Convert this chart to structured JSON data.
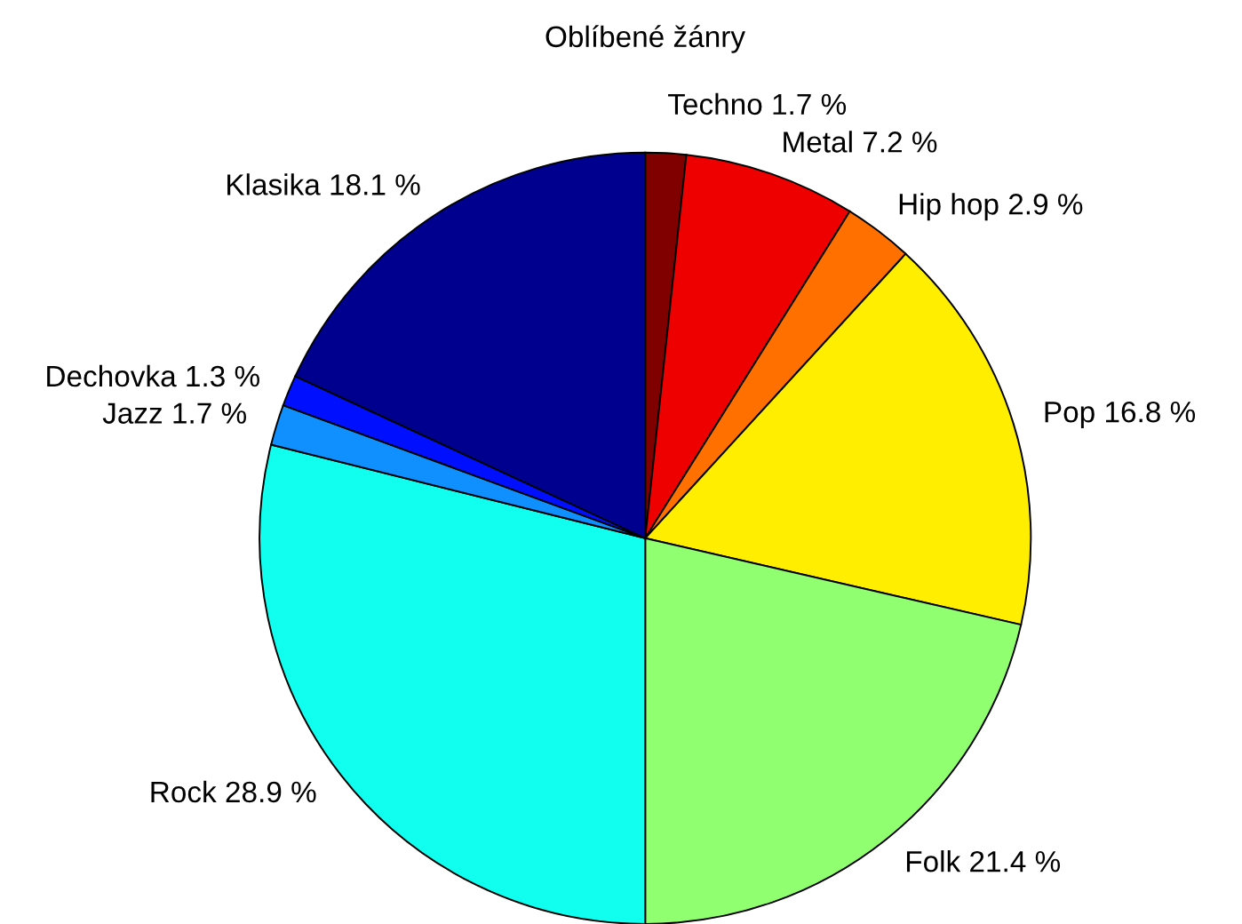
{
  "chart_data": {
    "type": "pie",
    "title": "Oblíbené žánry",
    "categories": [
      "Techno",
      "Metal",
      "Hip hop",
      "Pop",
      "Folk",
      "Rock",
      "Jazz",
      "Dechovka",
      "Klasika"
    ],
    "values": [
      1.7,
      7.2,
      2.9,
      16.8,
      21.4,
      28.9,
      1.7,
      1.3,
      18.1
    ],
    "value_labels": [
      "1.7 %",
      "7.2 %",
      "2.9 %",
      "16.8 %",
      "21.4 %",
      "28.9 %",
      "1.7 %",
      "1.3 %",
      "18.1 %"
    ],
    "colors": [
      "#800000",
      "#ee0000",
      "#ff7000",
      "#ffee00",
      "#90ff70",
      "#10ffee",
      "#1090ff",
      "#0010ff",
      "#00008f"
    ],
    "legend": false
  }
}
